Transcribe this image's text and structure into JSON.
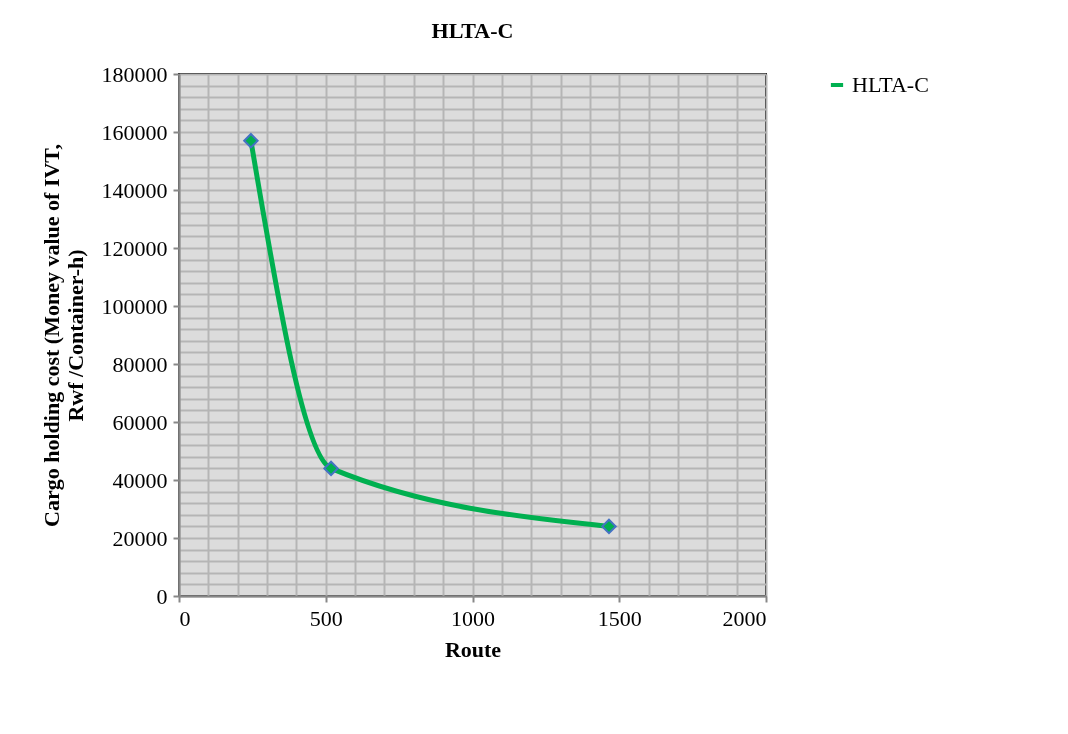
{
  "chart_data": {
    "type": "line",
    "title": "HLTA-C",
    "xlabel": "Route",
    "ylabel": "Cargo holding cost (Money value of IVT, Rwf /Container-h)",
    "x": [
      245,
      518,
      1465
    ],
    "series": [
      {
        "name": "HLTA-C",
        "color": "#00b050",
        "values": [
          157000,
          44000,
          24000
        ]
      }
    ],
    "xlim": [
      0,
      2000
    ],
    "xticks": [
      0,
      500,
      1000,
      1500,
      2000
    ],
    "ylim": [
      0,
      180000
    ],
    "yticks": [
      0,
      20000,
      40000,
      60000,
      80000,
      100000,
      120000,
      140000,
      160000,
      180000
    ],
    "grid": true,
    "legend": "right",
    "marker": "diamond",
    "line_style": "solid"
  }
}
